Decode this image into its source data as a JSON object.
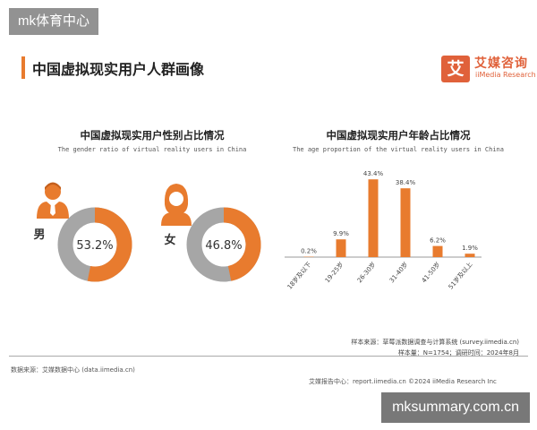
{
  "watermark_top": "mk体育中心",
  "watermark_bottom": "mksummary.com.cn",
  "page_title": "中国虚拟现实用户人群画像",
  "logo": {
    "mark": "艾",
    "cn": "艾媒咨询",
    "en": "iiMedia Research"
  },
  "colors": {
    "accent": "#e87b2e",
    "gray": "#a6a6a6",
    "brand": "#e0613a"
  },
  "icons": {
    "male": "male-person-icon",
    "female": "female-person-icon"
  },
  "gender_chart": {
    "title": "中国虚拟现实用户性别占比情况",
    "subtitle": "The gender ratio of virtual reality users in China"
  },
  "age_chart": {
    "title": "中国虚拟现实用户年龄占比情况",
    "subtitle": "The age proportion of the virtual reality users in China"
  },
  "footer": {
    "source": "数据来源：艾媒数据中心 (data.iimedia.cn)",
    "sample_source": "样本来源：草莓派数据调查与计算系统 (survey.iimedia.cn)",
    "sample_info": "样本量：N=1754；调研时间：2024年8月",
    "report": "艾媒报告中心：report.iimedia.cn  ©2024  iiMedia Research  Inc"
  },
  "chart_data": [
    {
      "type": "pie",
      "title": "中国虚拟现实用户性别占比情况",
      "slices": [
        {
          "label": "男",
          "value": 53.2,
          "value_label": "53.2%",
          "color": "#e87b2e"
        },
        {
          "label": "女",
          "value": 46.8,
          "value_label": "46.8%",
          "color": "#e87b2e"
        }
      ]
    },
    {
      "type": "bar",
      "title": "中国虚拟现实用户年龄占比情况",
      "categories": [
        "18岁及以下",
        "19-25岁",
        "26-30岁",
        "31-40岁",
        "41-50岁",
        "51岁及以上"
      ],
      "values": [
        0.2,
        9.9,
        43.4,
        38.4,
        6.2,
        1.9
      ],
      "value_labels": [
        "0.2%",
        "9.9%",
        "43.4%",
        "38.4%",
        "6.2%",
        "1.9%"
      ],
      "ylim": [
        0,
        50
      ],
      "color": "#e87b2e"
    }
  ]
}
